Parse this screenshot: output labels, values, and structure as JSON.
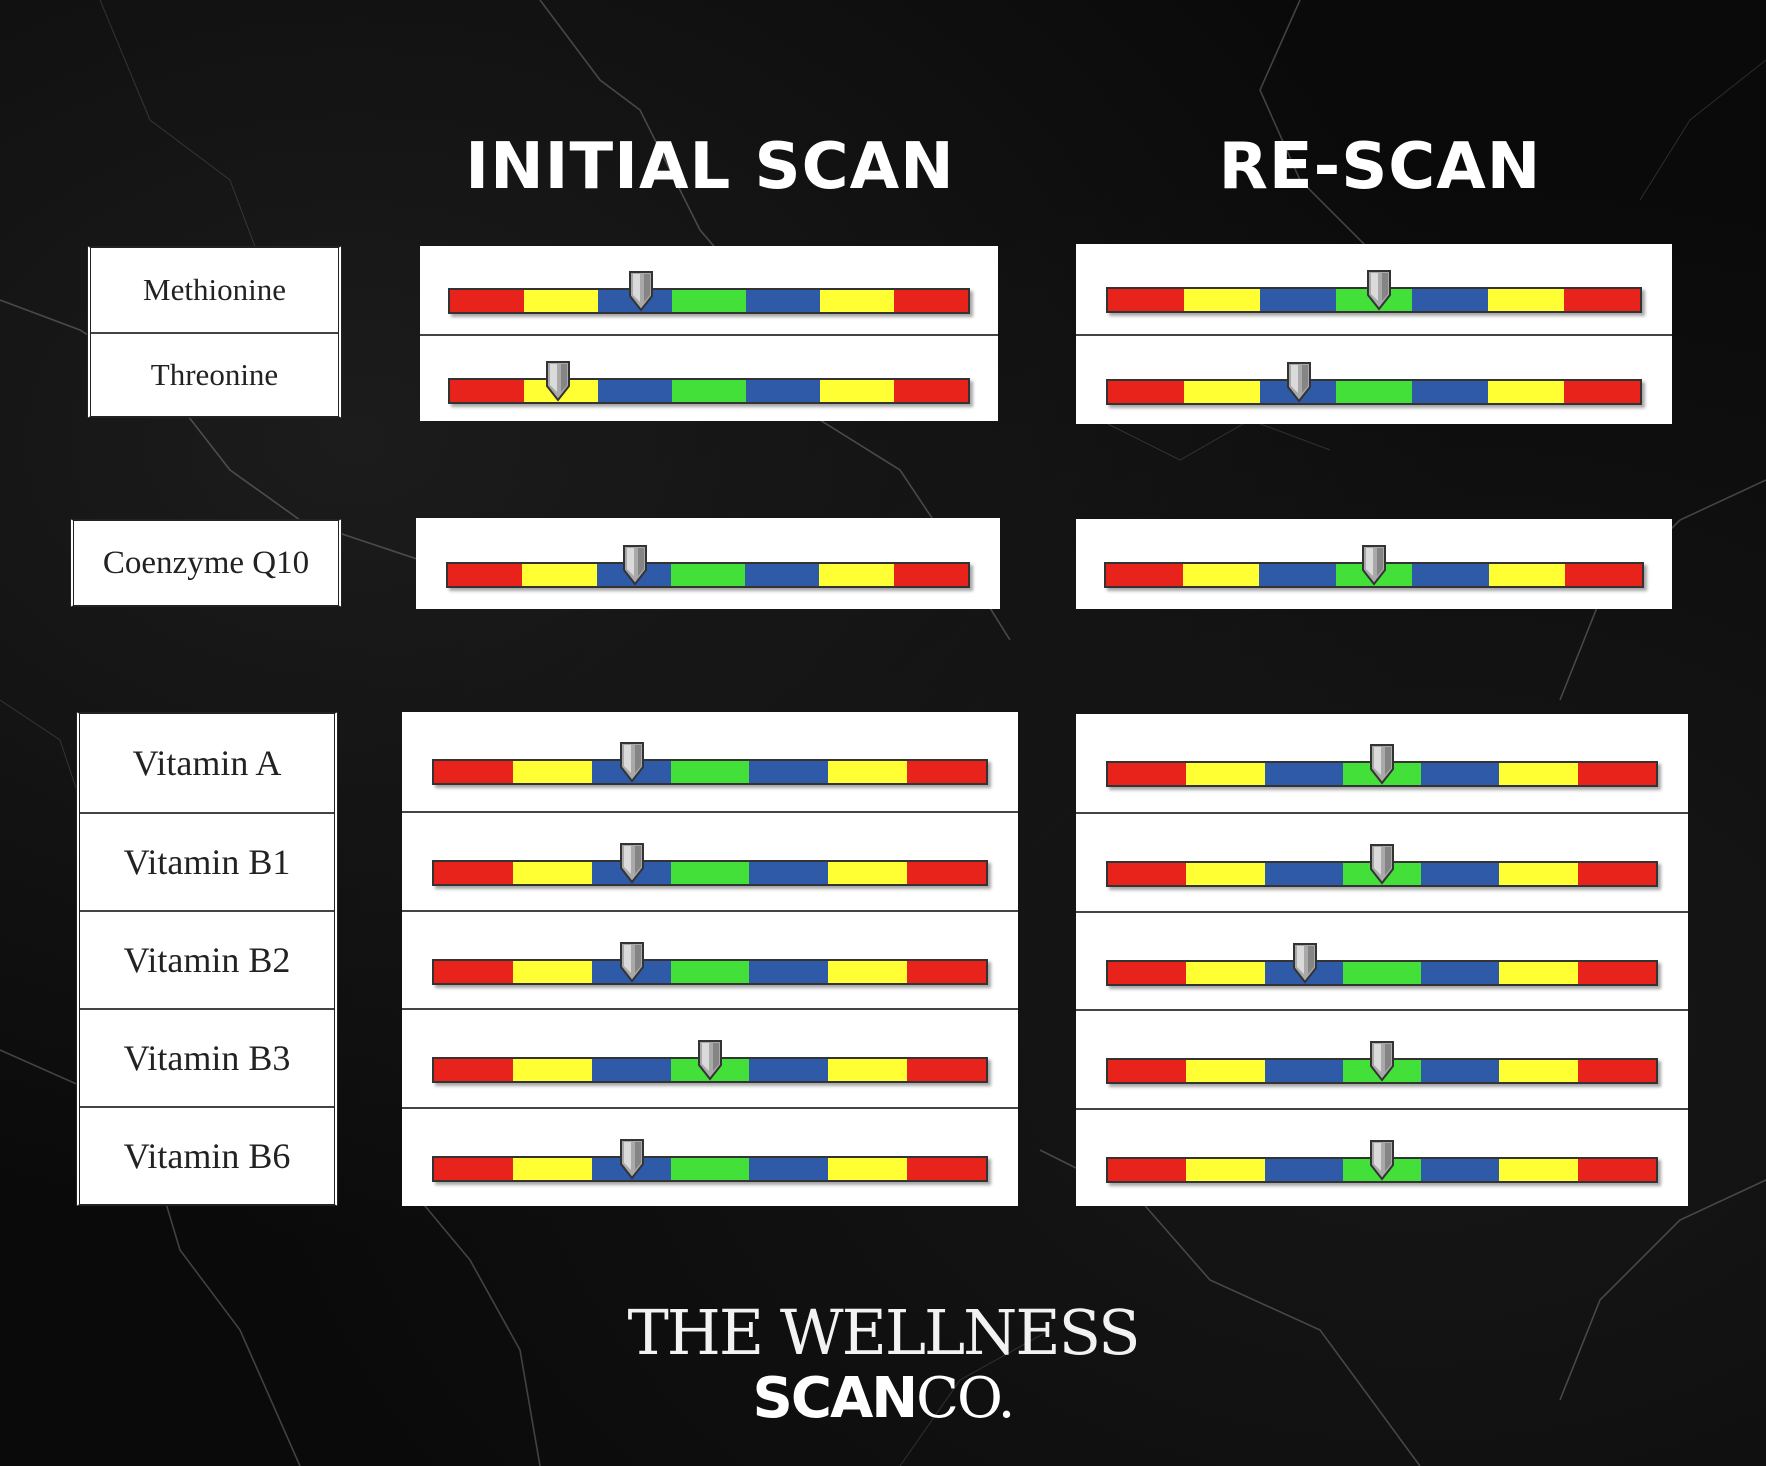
{
  "headings": {
    "initial": "INITIAL SCAN",
    "rescan": "RE-SCAN"
  },
  "scale_colors": [
    "#e8231c",
    "#ffff33",
    "#2f5aa8",
    "#44e03a",
    "#2f5aa8",
    "#ffff33",
    "#e8231c"
  ],
  "groups": [
    {
      "items": [
        {
          "label": "Methionine",
          "initial_level": 0.37,
          "rescan_level": 0.51
        },
        {
          "label": "Threonine",
          "initial_level": 0.21,
          "rescan_level": 0.36
        }
      ]
    },
    {
      "items": [
        {
          "label": "Coenzyme Q10",
          "initial_level": 0.36,
          "rescan_level": 0.5
        }
      ]
    },
    {
      "items": [
        {
          "label": "Vitamin A",
          "initial_level": 0.36,
          "rescan_level": 0.5
        },
        {
          "label": "Vitamin B1",
          "initial_level": 0.36,
          "rescan_level": 0.5
        },
        {
          "label": "Vitamin B2",
          "initial_level": 0.36,
          "rescan_level": 0.36
        },
        {
          "label": "Vitamin B3",
          "initial_level": 0.5,
          "rescan_level": 0.5
        },
        {
          "label": "Vitamin B6",
          "initial_level": 0.36,
          "rescan_level": 0.5
        }
      ]
    }
  ],
  "logo": {
    "line1": "THE WELLNESS",
    "line2_bold": "SCAN",
    "line2_light": "CO."
  }
}
